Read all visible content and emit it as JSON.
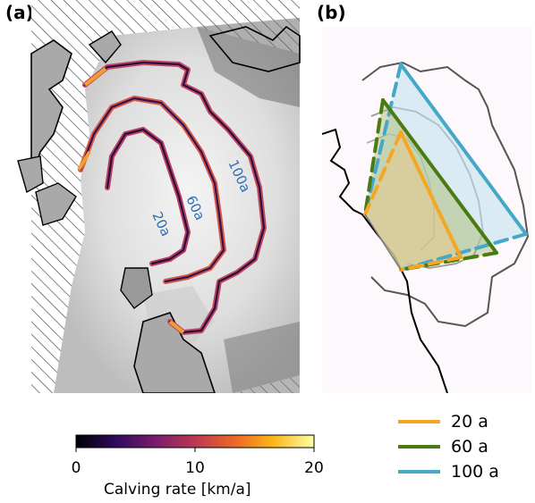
{
  "panels": {
    "a": "(a)",
    "b": "(b)"
  },
  "contour_labels": [
    "20a",
    "60a",
    "100a"
  ],
  "colorbar": {
    "label": "Calving rate [km/a]",
    "ticks": [
      "0",
      "10",
      "20"
    ],
    "colors": [
      "#000004",
      "#320a5e",
      "#781c6d",
      "#bc3754",
      "#ed6925",
      "#fbb61a",
      "#fcffa4"
    ]
  },
  "legend": [
    {
      "label": "20 a",
      "color": "#f5a623"
    },
    {
      "label": "60 a",
      "color": "#4a7a12"
    },
    {
      "label": "100 a",
      "color": "#45a8c8"
    }
  ]
}
